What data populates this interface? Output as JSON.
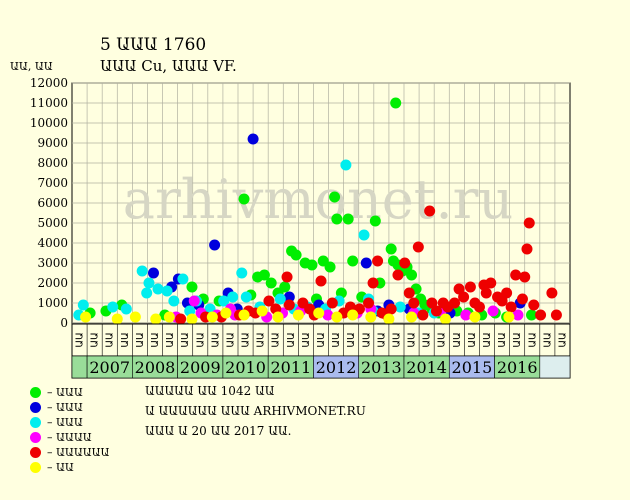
{
  "header": {
    "title": "5 ԱԱԱ 1760",
    "subtitle": "ԱԱԱ Cu, ԱԱԱ VF."
  },
  "footer": {
    "lines": [
      "ԱԱԱԱԱ ԱԱ 1042 ԱԱ",
      "Ա ԱԱԱԱԱԱ ԱԱԱ ARHIVMONET.RU",
      "ԱԱԱ Ա 20 ԱԱ 2017 ԱԱ."
    ]
  },
  "watermark": "arhivmonet.ru",
  "chart_data": {
    "type": "scatter",
    "ylabel": "ԱԱ, ԱԱ",
    "ylim": [
      0,
      12000
    ],
    "yticks": [
      0,
      1000,
      2000,
      3000,
      4000,
      5000,
      6000,
      7000,
      8000,
      9000,
      10000,
      11000,
      12000
    ],
    "grid": true,
    "x_sub_labels": [
      "ԱԱ",
      "ԱԱ",
      "ԱԱ"
    ],
    "x_sub_count": 33,
    "years": [
      {
        "label": "2007",
        "color": "#99dd99"
      },
      {
        "label": "2008",
        "color": "#99dd99"
      },
      {
        "label": "2009",
        "color": "#99dd99"
      },
      {
        "label": "2010",
        "color": "#99dd99"
      },
      {
        "label": "2011",
        "color": "#99dd99"
      },
      {
        "label": "2012",
        "color": "#aabbee"
      },
      {
        "label": "2013",
        "color": "#99dd99"
      },
      {
        "label": "2014",
        "color": "#99dd99"
      },
      {
        "label": "2015",
        "color": "#aabbee"
      },
      {
        "label": "2016",
        "color": "#99dd99"
      }
    ],
    "series": [
      {
        "name": "– ԱԱԱ",
        "color": "#00ee00",
        "points": [
          [
            0.8,
            500
          ],
          [
            1.5,
            600
          ],
          [
            2.2,
            900
          ],
          [
            4.1,
            400
          ],
          [
            5.3,
            1800
          ],
          [
            5.8,
            1200
          ],
          [
            6.5,
            1100
          ],
          [
            7.6,
            6200
          ],
          [
            7.9,
            1400
          ],
          [
            8.2,
            2300
          ],
          [
            8.5,
            2400
          ],
          [
            8.8,
            2000
          ],
          [
            9.1,
            1500
          ],
          [
            9.4,
            1800
          ],
          [
            9.7,
            3600
          ],
          [
            9.9,
            3400
          ],
          [
            10.3,
            3000
          ],
          [
            10.6,
            2900
          ],
          [
            10.8,
            1200
          ],
          [
            11.1,
            3100
          ],
          [
            11.4,
            2800
          ],
          [
            11.6,
            6300
          ],
          [
            11.7,
            5200
          ],
          [
            11.9,
            1500
          ],
          [
            12.2,
            5200
          ],
          [
            12.4,
            3100
          ],
          [
            12.8,
            1300
          ],
          [
            13.4,
            5100
          ],
          [
            13.6,
            2000
          ],
          [
            14.1,
            3700
          ],
          [
            14.2,
            3100
          ],
          [
            14.3,
            11000
          ],
          [
            14.4,
            2900
          ],
          [
            14.6,
            2600
          ],
          [
            14.8,
            2800
          ],
          [
            15.0,
            2400
          ],
          [
            15.2,
            1700
          ],
          [
            15.4,
            1200
          ],
          [
            15.6,
            900
          ],
          [
            15.9,
            700
          ],
          [
            16.2,
            500
          ],
          [
            16.5,
            400
          ],
          [
            17.0,
            600
          ],
          [
            17.5,
            500
          ],
          [
            18.1,
            400
          ],
          [
            18.7,
            500
          ],
          [
            19.2,
            300
          ],
          [
            20.3,
            400
          ]
        ]
      },
      {
        "name": "– ԱԱԱ",
        "color": "#0000dd",
        "points": [
          [
            3.6,
            2500
          ],
          [
            4.4,
            1800
          ],
          [
            4.7,
            2200
          ],
          [
            5.1,
            1000
          ],
          [
            5.6,
            900
          ],
          [
            6.3,
            3900
          ],
          [
            6.9,
            1500
          ],
          [
            7.3,
            700
          ],
          [
            8.0,
            9200
          ],
          [
            9.6,
            1300
          ],
          [
            10.9,
            900
          ],
          [
            13.0,
            3000
          ],
          [
            13.5,
            600
          ],
          [
            14.0,
            900
          ],
          [
            14.9,
            700
          ],
          [
            16.7,
            500
          ],
          [
            19.8,
            1000
          ]
        ]
      },
      {
        "name": "– ԱԱԱ",
        "color": "#00eeee",
        "points": [
          [
            0.3,
            400
          ],
          [
            0.5,
            900
          ],
          [
            1.8,
            800
          ],
          [
            2.4,
            700
          ],
          [
            3.1,
            2600
          ],
          [
            3.3,
            1500
          ],
          [
            3.4,
            2000
          ],
          [
            3.8,
            1700
          ],
          [
            4.2,
            1600
          ],
          [
            4.5,
            1100
          ],
          [
            4.9,
            2200
          ],
          [
            5.2,
            600
          ],
          [
            5.5,
            1100
          ],
          [
            6.1,
            700
          ],
          [
            6.7,
            1100
          ],
          [
            7.1,
            1300
          ],
          [
            7.5,
            2500
          ],
          [
            7.7,
            1300
          ],
          [
            8.3,
            800
          ],
          [
            9.2,
            1200
          ],
          [
            9.8,
            700
          ],
          [
            10.4,
            800
          ],
          [
            11.2,
            700
          ],
          [
            11.8,
            1100
          ],
          [
            12.1,
            7900
          ],
          [
            12.5,
            600
          ],
          [
            12.9,
            4400
          ],
          [
            13.1,
            1200
          ],
          [
            13.3,
            600
          ],
          [
            14.5,
            800
          ],
          [
            15.3,
            500
          ],
          [
            16.0,
            500
          ]
        ]
      },
      {
        "name": "– ԱԱԱԱ",
        "color": "#ff00ff",
        "points": [
          [
            4.6,
            300
          ],
          [
            5.4,
            1100
          ],
          [
            5.7,
            500
          ],
          [
            6.4,
            400
          ],
          [
            7.0,
            700
          ],
          [
            7.2,
            400
          ],
          [
            8.6,
            300
          ],
          [
            9.3,
            500
          ],
          [
            10.1,
            600
          ],
          [
            11.3,
            400
          ],
          [
            12.6,
            500
          ],
          [
            13.2,
            700
          ],
          [
            15.1,
            500
          ],
          [
            16.3,
            600
          ],
          [
            17.4,
            400
          ],
          [
            18.6,
            600
          ],
          [
            19.7,
            400
          ]
        ]
      },
      {
        "name": "– ԱԱԱԱԱԱ",
        "color": "#ee0000",
        "points": [
          [
            4.8,
            200
          ],
          [
            5.9,
            300
          ],
          [
            6.6,
            300
          ],
          [
            7.4,
            400
          ],
          [
            7.8,
            600
          ],
          [
            8.1,
            500
          ],
          [
            8.7,
            1100
          ],
          [
            9.0,
            700
          ],
          [
            9.5,
            2300
          ],
          [
            9.6,
            900
          ],
          [
            10.2,
            1000
          ],
          [
            10.5,
            700
          ],
          [
            10.7,
            400
          ],
          [
            11.0,
            2100
          ],
          [
            11.5,
            1000
          ],
          [
            12.0,
            500
          ],
          [
            12.3,
            800
          ],
          [
            12.7,
            700
          ],
          [
            13.1,
            1000
          ],
          [
            13.3,
            2000
          ],
          [
            13.5,
            3100
          ],
          [
            13.7,
            500
          ],
          [
            13.9,
            400
          ],
          [
            14.1,
            700
          ],
          [
            14.4,
            2400
          ],
          [
            14.7,
            3000
          ],
          [
            14.9,
            1500
          ],
          [
            15.1,
            1000
          ],
          [
            15.3,
            3800
          ],
          [
            15.5,
            400
          ],
          [
            15.8,
            5600
          ],
          [
            15.9,
            1000
          ],
          [
            16.1,
            600
          ],
          [
            16.4,
            1000
          ],
          [
            16.6,
            800
          ],
          [
            16.9,
            1000
          ],
          [
            17.1,
            1700
          ],
          [
            17.3,
            1300
          ],
          [
            17.6,
            1800
          ],
          [
            17.8,
            1000
          ],
          [
            18.0,
            800
          ],
          [
            18.2,
            1900
          ],
          [
            18.3,
            1500
          ],
          [
            18.5,
            2000
          ],
          [
            18.8,
            1300
          ],
          [
            19.0,
            1100
          ],
          [
            19.2,
            1500
          ],
          [
            19.4,
            800
          ],
          [
            19.6,
            2400
          ],
          [
            19.9,
            1200
          ],
          [
            20.0,
            2300
          ],
          [
            20.1,
            3700
          ],
          [
            20.2,
            5000
          ],
          [
            20.4,
            900
          ],
          [
            20.7,
            400
          ],
          [
            21.2,
            1500
          ],
          [
            21.4,
            400
          ]
        ]
      },
      {
        "name": "– ԱԱ",
        "color": "#ffff00",
        "points": [
          [
            0.6,
            300
          ],
          [
            2.0,
            200
          ],
          [
            2.8,
            300
          ],
          [
            3.7,
            200
          ],
          [
            4.3,
            300
          ],
          [
            5.3,
            200
          ],
          [
            6.2,
            300
          ],
          [
            6.8,
            500
          ],
          [
            7.6,
            400
          ],
          [
            8.4,
            600
          ],
          [
            9.1,
            300
          ],
          [
            10.0,
            400
          ],
          [
            10.9,
            500
          ],
          [
            11.7,
            300
          ],
          [
            12.4,
            400
          ],
          [
            13.2,
            300
          ],
          [
            14.0,
            200
          ],
          [
            15.0,
            300
          ],
          [
            16.5,
            200
          ],
          [
            17.8,
            300
          ],
          [
            19.3,
            300
          ]
        ]
      }
    ]
  }
}
